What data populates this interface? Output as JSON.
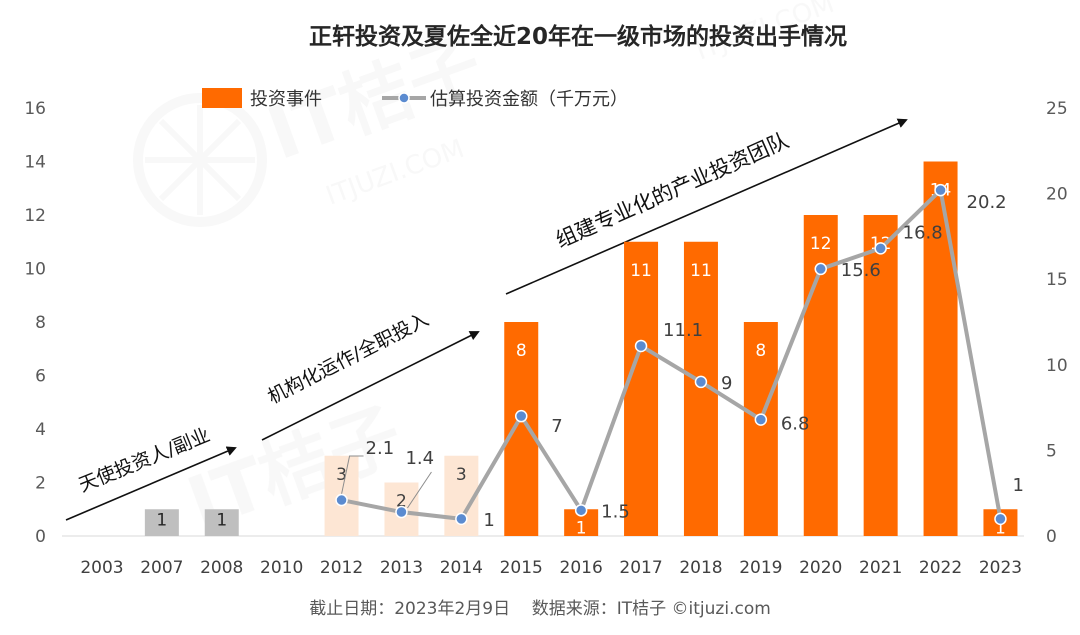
{
  "chart_data": {
    "type": "bar",
    "title": "正轩投资及夏佐全近20年在一级市场的投资出手情况",
    "categories": [
      "2003",
      "2007",
      "2008",
      "2010",
      "2012",
      "2013",
      "2014",
      "2015",
      "2016",
      "2017",
      "2018",
      "2019",
      "2020",
      "2021",
      "2022",
      "2023"
    ],
    "series": [
      {
        "name": "投资事件",
        "axis": "left",
        "kind": "bar",
        "values": [
          null,
          1,
          1,
          null,
          3,
          2,
          3,
          8,
          1,
          11,
          11,
          8,
          12,
          12,
          14,
          1
        ],
        "labels": [
          "",
          "1",
          "1",
          "",
          "3",
          "2",
          "3",
          "8",
          "1",
          "11",
          "11",
          "8",
          "12",
          "12",
          "14",
          "1"
        ]
      },
      {
        "name": "估算投资金额（千万元）",
        "axis": "right",
        "kind": "line",
        "values": [
          null,
          null,
          null,
          null,
          2.1,
          1.4,
          1,
          7,
          1.5,
          11.1,
          9,
          6.8,
          15.6,
          16.8,
          20.2,
          1
        ],
        "labels": [
          "",
          "",
          "",
          "",
          "2.1",
          "1.4",
          "1",
          "7",
          "1.5",
          "11.1",
          "9",
          "6.8",
          "15.6",
          "16.8",
          "20.2",
          "1"
        ]
      }
    ],
    "y_left": {
      "min": 0,
      "max": 16,
      "ticks": [
        "0",
        "2",
        "4",
        "6",
        "8",
        "10",
        "12",
        "14",
        "16"
      ]
    },
    "y_right": {
      "min": 0,
      "max": 25,
      "ticks": [
        "0",
        "5",
        "10",
        "15",
        "20",
        "25"
      ]
    },
    "legend_position": "top-center",
    "grid": false,
    "phases": [
      {
        "label": "天使投资人/副业",
        "bar_color": "#bfbfbf"
      },
      {
        "label": "机构化运作/全职投入",
        "bar_color": "#fde6d4"
      },
      {
        "label": "组建专业化的产业投资团队",
        "bar_color": "#ff6a00"
      }
    ],
    "colors": {
      "line": "#a6a6a6",
      "marker": "#5b8bd0",
      "bar_main": "#ff6a00"
    }
  },
  "footer": "截止日期：2023年2月9日    数据来源：IT桔子 ©itjuzi.com",
  "watermark": {
    "brand": "IT桔子",
    "url": "ITJUZI.COM"
  }
}
